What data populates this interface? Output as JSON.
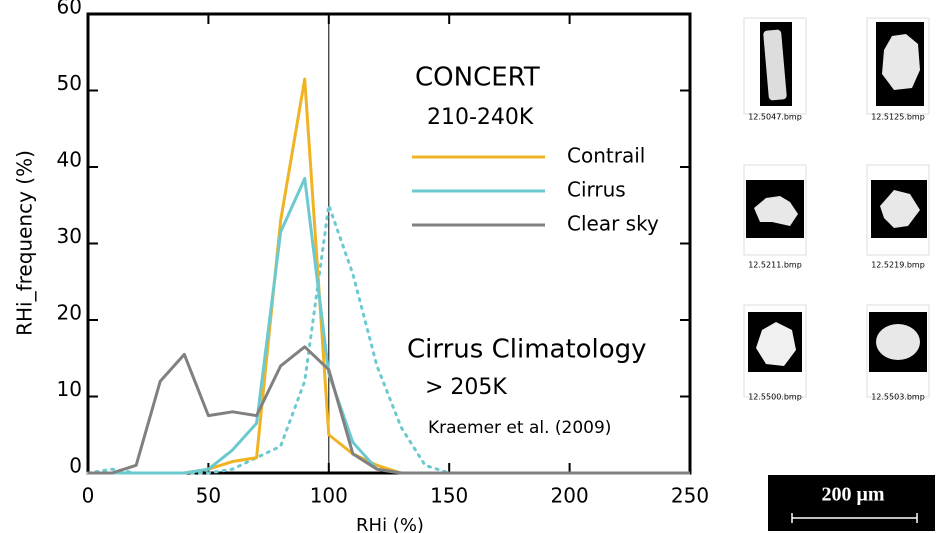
{
  "chart_data": {
    "type": "line",
    "x_label": "RHi (%)",
    "y_label": "RHi_frequency (%)",
    "x": [
      0,
      10,
      20,
      30,
      40,
      50,
      60,
      70,
      80,
      90,
      100,
      110,
      120,
      130,
      140,
      150,
      160,
      170,
      180,
      190,
      200,
      210,
      220,
      230,
      240,
      250
    ],
    "series": [
      {
        "name": "Contrail",
        "color": "#f0b323",
        "values": [
          0,
          0,
          0,
          0,
          0,
          0.5,
          1.5,
          2,
          33,
          51.5,
          5,
          2.5,
          1,
          0,
          0,
          0,
          0,
          0,
          0,
          0,
          0,
          0,
          0,
          0,
          0,
          0
        ]
      },
      {
        "name": "Cirrus",
        "color": "#6cc9cf",
        "values": [
          0,
          0,
          0,
          0,
          0,
          0.5,
          3,
          6.5,
          31.5,
          38.5,
          13,
          4,
          0.5,
          0,
          0,
          0,
          0,
          0,
          0,
          0,
          0,
          0,
          0,
          0,
          0,
          0
        ]
      },
      {
        "name": "Clear sky",
        "color": "#808080",
        "values": [
          0,
          0,
          1,
          12,
          15.5,
          7.5,
          8,
          7.5,
          14,
          16.5,
          13.5,
          2.5,
          0.5,
          0,
          0,
          0,
          0,
          0,
          0,
          0,
          0,
          0,
          0,
          0,
          0,
          0
        ]
      },
      {
        "name": "Cirrus Climatology",
        "color": "#6cc9cf",
        "dotted": true,
        "values": [
          0,
          0.5,
          0,
          0,
          0,
          0,
          0.5,
          2,
          3.5,
          12,
          35,
          26,
          14,
          6,
          1,
          0,
          0,
          0,
          0,
          0,
          0,
          0,
          0,
          0,
          0,
          0
        ]
      }
    ],
    "legend_title": "CONCERT",
    "legend_subtitle": "210-240K",
    "climatology_temperature": "> 205K",
    "climatology_reference": "Kraemer et al. (2009)",
    "reference_x": 100,
    "xlim": [
      0,
      250
    ],
    "xticks": [
      0,
      50,
      100,
      150,
      200,
      250
    ],
    "ylim": [
      0,
      60
    ],
    "yticks": [
      0,
      10,
      20,
      30,
      40,
      50,
      60
    ]
  },
  "images": {
    "captions": [
      "12.5047.bmp",
      "12.5125.bmp",
      "12.5211.bmp",
      "12.5219.bmp",
      "12.5500.bmp",
      "12.5503.bmp"
    ],
    "scale_bar": "200 μm"
  }
}
